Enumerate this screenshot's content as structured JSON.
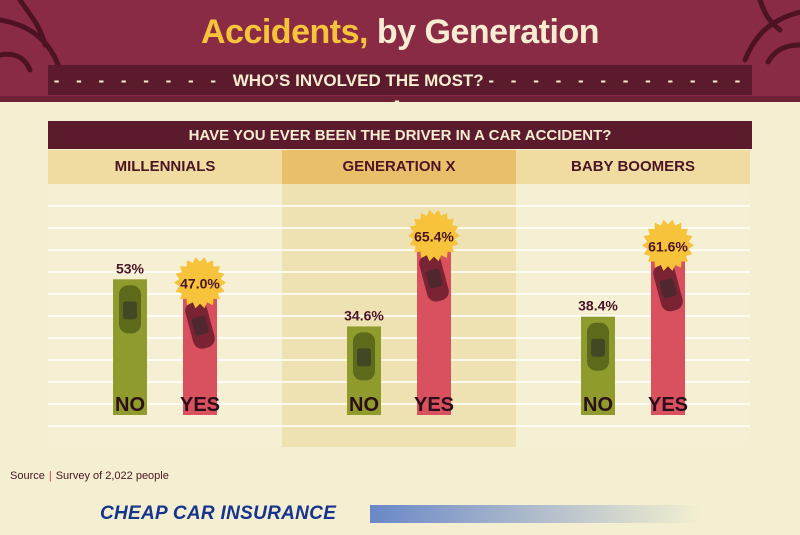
{
  "header": {
    "title_main": "Accidents,",
    "title_rest": " by Generation",
    "subtitle": "WHO’S INVOLVED THE MOST?"
  },
  "colors": {
    "header_bg": "#8a2b45",
    "title_accent": "#f6c33a",
    "title_text": "#f6edd2",
    "no_bar": "#8f9b2c",
    "yes_bar": "#d9505f",
    "badge": "#f6c33a",
    "label_text": "#4a1424"
  },
  "chart_data": {
    "type": "bar",
    "title": "HAVE YOU EVER BEEN THE DRIVER IN A CAR ACCIDENT?",
    "categories": [
      "MILLENNIALS",
      "GENERATION X",
      "BABY BOOMERS"
    ],
    "series": [
      {
        "name": "NO",
        "values": [
          53,
          34.6,
          38.4
        ],
        "labels": [
          "53%",
          "34.6%",
          "38.4%"
        ],
        "color": "#8f9b2c"
      },
      {
        "name": "YES",
        "values": [
          47.0,
          65.4,
          61.6
        ],
        "labels": [
          "47.0%",
          "65.4%",
          "61.6%"
        ],
        "color": "#d9505f"
      }
    ],
    "ylim": [
      0,
      100
    ],
    "grid": true,
    "highlighted_category": "GENERATION X"
  },
  "footer": {
    "source_label": "Source",
    "source_text": "Survey of 2,022 people",
    "logo_text": "CHEAP CAR INSURANCE"
  },
  "icons": [
    "tree-branch-icon",
    "car-icon",
    "sunburst-badge-icon"
  ]
}
